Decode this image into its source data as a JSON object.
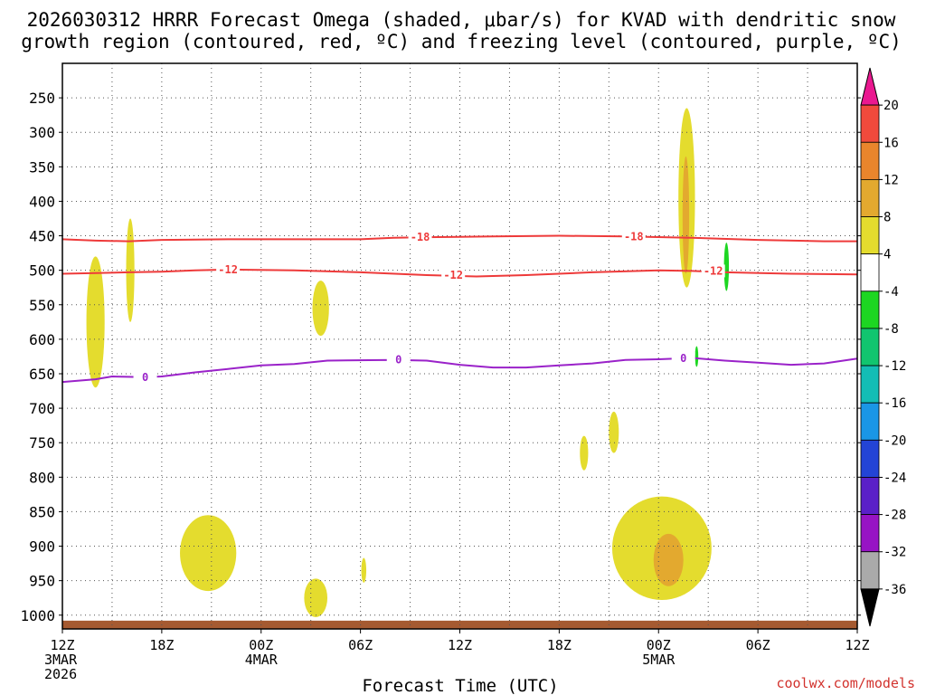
{
  "chart_data": {
    "type": "contour-time-section",
    "title_line1": "2026030312 HRRR Forecast Omega (shaded, μbar/s) for KVAD with dendritic snow",
    "title_line2": "growth region (contoured, red, ºC) and freezing level (contoured, purple, ºC)",
    "xlabel": "Forecast Time (UTC)",
    "credit": "coolwx.com/models",
    "x_range_hours": [
      0,
      48
    ],
    "y_range_hpa": [
      1020,
      200
    ],
    "y_ticks": [
      250,
      300,
      350,
      400,
      450,
      500,
      550,
      600,
      650,
      700,
      750,
      800,
      850,
      900,
      950,
      1000
    ],
    "x_ticks": [
      {
        "h": 0,
        "lines": [
          "12Z",
          "3MAR",
          "2026"
        ]
      },
      {
        "h": 6,
        "lines": [
          "18Z"
        ]
      },
      {
        "h": 12,
        "lines": [
          "00Z",
          "4MAR"
        ]
      },
      {
        "h": 18,
        "lines": [
          "06Z"
        ]
      },
      {
        "h": 24,
        "lines": [
          "12Z"
        ]
      },
      {
        "h": 30,
        "lines": [
          "18Z"
        ]
      },
      {
        "h": 36,
        "lines": [
          "00Z",
          "5MAR"
        ]
      },
      {
        "h": 42,
        "lines": [
          "06Z"
        ]
      },
      {
        "h": 48,
        "lines": [
          "12Z"
        ]
      }
    ],
    "contours": [
      {
        "name": "temp-minus18",
        "label": "-18",
        "color": "#ee3a3a",
        "points": [
          [
            0,
            455
          ],
          [
            2,
            457
          ],
          [
            4,
            458
          ],
          [
            6,
            456
          ],
          [
            10,
            455
          ],
          [
            14,
            455
          ],
          [
            18,
            455
          ],
          [
            20,
            453
          ],
          [
            22,
            452
          ],
          [
            26,
            451
          ],
          [
            30,
            450
          ],
          [
            34,
            451
          ],
          [
            38,
            453
          ],
          [
            42,
            456
          ],
          [
            46,
            458
          ],
          [
            48,
            458
          ]
        ],
        "label_positions": [
          [
            21.6,
            452
          ],
          [
            34.5,
            451
          ]
        ]
      },
      {
        "name": "temp-minus12",
        "label": "-12",
        "color": "#ee3a3a",
        "points": [
          [
            0,
            505
          ],
          [
            2,
            504
          ],
          [
            4,
            503
          ],
          [
            6,
            502
          ],
          [
            8,
            500
          ],
          [
            10,
            499
          ],
          [
            14,
            500
          ],
          [
            18,
            503
          ],
          [
            22,
            507
          ],
          [
            25,
            509
          ],
          [
            28,
            507
          ],
          [
            32,
            503
          ],
          [
            36,
            500
          ],
          [
            38,
            501
          ],
          [
            40,
            503
          ],
          [
            44,
            505
          ],
          [
            48,
            506
          ]
        ],
        "label_positions": [
          [
            10,
            499
          ],
          [
            23.6,
            507
          ],
          [
            39.3,
            501
          ]
        ]
      },
      {
        "name": "freezing-level",
        "label": "0",
        "color": "#9a22c9",
        "points": [
          [
            0,
            662
          ],
          [
            2,
            658
          ],
          [
            3,
            654
          ],
          [
            5,
            655
          ],
          [
            6,
            654
          ],
          [
            8,
            648
          ],
          [
            10,
            643
          ],
          [
            12,
            638
          ],
          [
            14,
            636
          ],
          [
            16,
            631
          ],
          [
            20,
            630
          ],
          [
            22,
            631
          ],
          [
            24,
            637
          ],
          [
            26,
            641
          ],
          [
            28,
            641
          ],
          [
            30,
            638
          ],
          [
            32,
            635
          ],
          [
            34,
            630
          ],
          [
            36,
            629
          ],
          [
            38,
            627
          ],
          [
            40,
            631
          ],
          [
            42,
            634
          ],
          [
            44,
            637
          ],
          [
            46,
            635
          ],
          [
            48,
            628
          ]
        ],
        "label_positions": [
          [
            5,
            655
          ],
          [
            20.3,
            630
          ],
          [
            37.5,
            628
          ]
        ]
      }
    ],
    "omega_regions": [
      {
        "name": "omega-4-8",
        "color": "#e4dc2e",
        "center": [
          2.0,
          575
        ],
        "size": [
          0.55,
          95
        ]
      },
      {
        "name": "omega-4-8",
        "color": "#e4dc2e",
        "center": [
          4.1,
          500
        ],
        "size": [
          0.25,
          75
        ]
      },
      {
        "name": "omega-4-8",
        "color": "#e4dc2e",
        "center": [
          15.6,
          555
        ],
        "size": [
          0.5,
          40
        ]
      },
      {
        "name": "omega-4-8",
        "color": "#e4dc2e",
        "center": [
          8.8,
          910
        ],
        "size": [
          1.7,
          55
        ]
      },
      {
        "name": "omega-4-8",
        "color": "#e4dc2e",
        "center": [
          15.3,
          975
        ],
        "size": [
          0.7,
          28
        ]
      },
      {
        "name": "omega-4-8",
        "color": "#e4dc2e",
        "center": [
          18.2,
          935
        ],
        "size": [
          0.15,
          18
        ]
      },
      {
        "name": "omega-4-8",
        "color": "#e4dc2e",
        "center": [
          33.3,
          735
        ],
        "size": [
          0.3,
          30
        ]
      },
      {
        "name": "omega-4-8",
        "color": "#e4dc2e",
        "center": [
          31.5,
          765
        ],
        "size": [
          0.25,
          25
        ]
      },
      {
        "name": "omega-4-8",
        "color": "#e4dc2e",
        "center": [
          37.7,
          395
        ],
        "size": [
          0.5,
          130
        ]
      },
      {
        "name": "omega-4-8",
        "color": "#e4dc2e",
        "center": [
          36.2,
          903
        ],
        "size": [
          3.0,
          75
        ]
      },
      {
        "name": "omega-8-12",
        "color": "#e3a92f",
        "center": [
          37.65,
          420
        ],
        "size": [
          0.2,
          85
        ]
      },
      {
        "name": "omega-8-12",
        "color": "#e3a92f",
        "center": [
          36.6,
          920
        ],
        "size": [
          0.9,
          38
        ]
      },
      {
        "name": "omega-minus4-minus8",
        "color": "#1dd622",
        "center": [
          40.1,
          495
        ],
        "size": [
          0.15,
          35
        ]
      },
      {
        "name": "omega-minus4-minus8",
        "color": "#1dd622",
        "center": [
          38.3,
          625
        ],
        "size": [
          0.1,
          15
        ]
      }
    ],
    "terrain": {
      "color": "#a55a31",
      "top_hpa": 1008
    },
    "colorbar": {
      "colors": [
        "#ea1890",
        "#f04a3c",
        "#e9852c",
        "#e3a92f",
        "#e4dc2e",
        "#ffffff",
        "#1dd622",
        "#11c56f",
        "#13bdb5",
        "#1a96e6",
        "#2344d6",
        "#5a20c8",
        "#9714c4",
        "#aaaaaa",
        "#000000"
      ],
      "labels": [
        "20",
        "16",
        "12",
        "8",
        "4",
        "-4",
        "-8",
        "-12",
        "-16",
        "-20",
        "-24",
        "-28",
        "-32",
        "-36"
      ]
    }
  }
}
